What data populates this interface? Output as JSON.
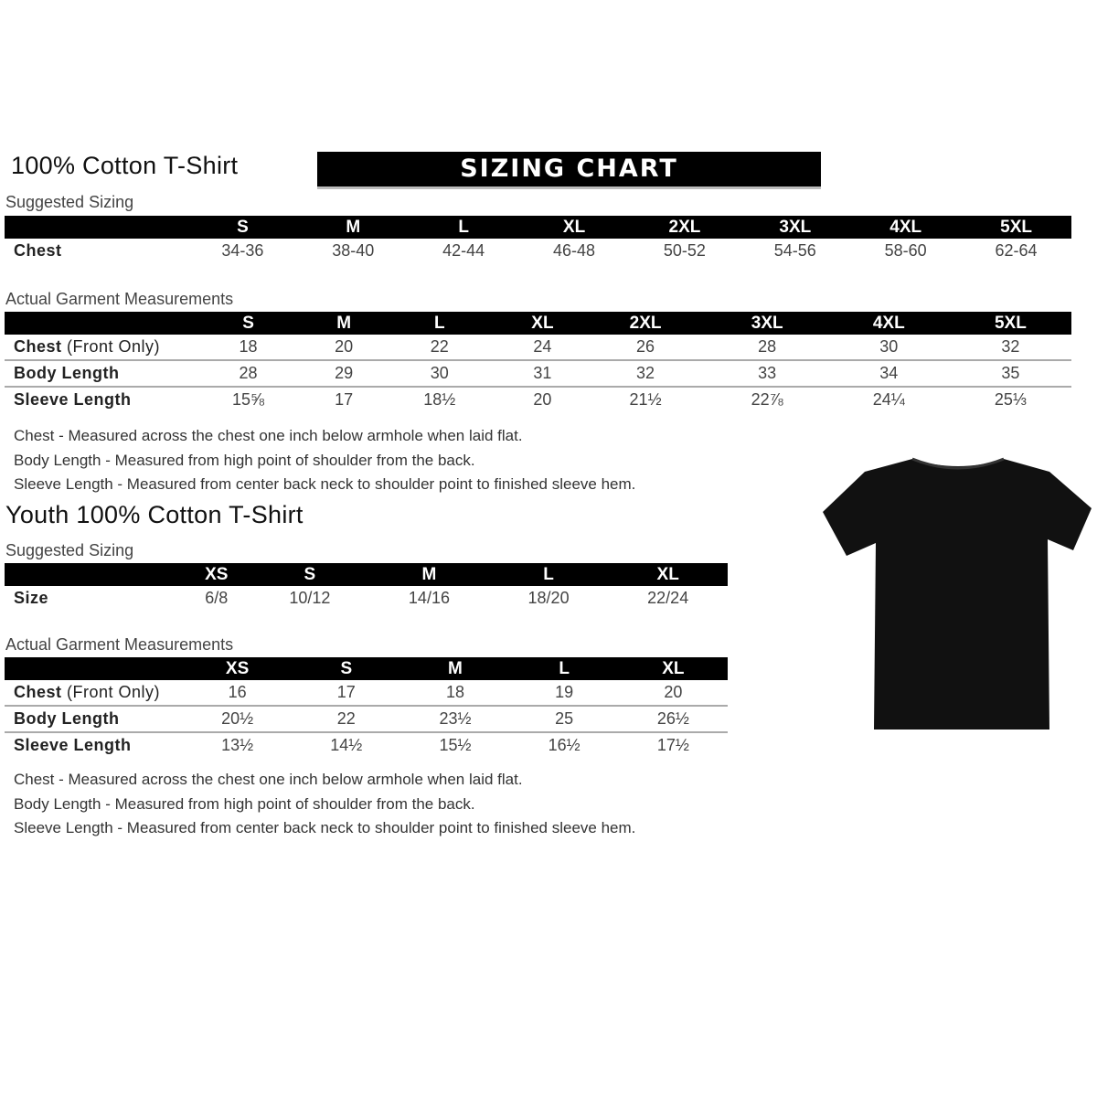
{
  "adult": {
    "title": "100% Cotton T-Shirt",
    "banner": "SIZING CHART",
    "suggested_label": "Suggested Sizing",
    "sizes": [
      "S",
      "M",
      "L",
      "XL",
      "2XL",
      "3XL",
      "4XL",
      "5XL"
    ],
    "chest_label": "Chest",
    "chest": [
      "34-36",
      "38-40",
      "42-44",
      "46-48",
      "50-52",
      "54-56",
      "58-60",
      "62-64"
    ],
    "actual_label": "Actual Garment Measurements",
    "rows": [
      {
        "label": "Chest",
        "label_suffix": "(Front Only)",
        "values": [
          "18",
          "20",
          "22",
          "24",
          "26",
          "28",
          "30",
          "32"
        ]
      },
      {
        "label": "Body Length",
        "label_suffix": "",
        "values": [
          "28",
          "29",
          "30",
          "31",
          "32",
          "33",
          "34",
          "35"
        ]
      },
      {
        "label": "Sleeve Length",
        "label_suffix": "",
        "values": [
          "15⅝",
          "17",
          "18½",
          "20",
          "21½",
          "22⅞",
          "24¼",
          "25⅓"
        ]
      }
    ],
    "notes": [
      "Chest - Measured across the chest one inch below armhole when laid flat.",
      "Body Length - Measured from high point of shoulder from the back.",
      "Sleeve Length - Measured from center back neck to shoulder point to finished sleeve hem."
    ]
  },
  "youth": {
    "title": "Youth 100% Cotton T-Shirt",
    "suggested_label": "Suggested Sizing",
    "sizes": [
      "XS",
      "S",
      "M",
      "L",
      "XL"
    ],
    "size_label": "Size",
    "size_values": [
      "6/8",
      "10/12",
      "14/16",
      "18/20",
      "22/24"
    ],
    "actual_label": "Actual Garment Measurements",
    "rows": [
      {
        "label": "Chest",
        "label_suffix": "(Front Only)",
        "values": [
          "16",
          "17",
          "18",
          "19",
          "20"
        ]
      },
      {
        "label": "Body Length",
        "label_suffix": "",
        "values": [
          "20½",
          "22",
          "23½",
          "25",
          "26½"
        ]
      },
      {
        "label": "Sleeve Length",
        "label_suffix": "",
        "values": [
          "13½",
          "14½",
          "15½",
          "16½",
          "17½"
        ]
      }
    ],
    "notes": [
      "Chest - Measured across the chest one inch below armhole when laid flat.",
      "Body Length - Measured from high point of shoulder from the back.",
      "Sleeve Length - Measured from center back neck to shoulder point to finished sleeve hem."
    ]
  },
  "image": {
    "icon": "tshirt-icon",
    "color": "#111111"
  }
}
